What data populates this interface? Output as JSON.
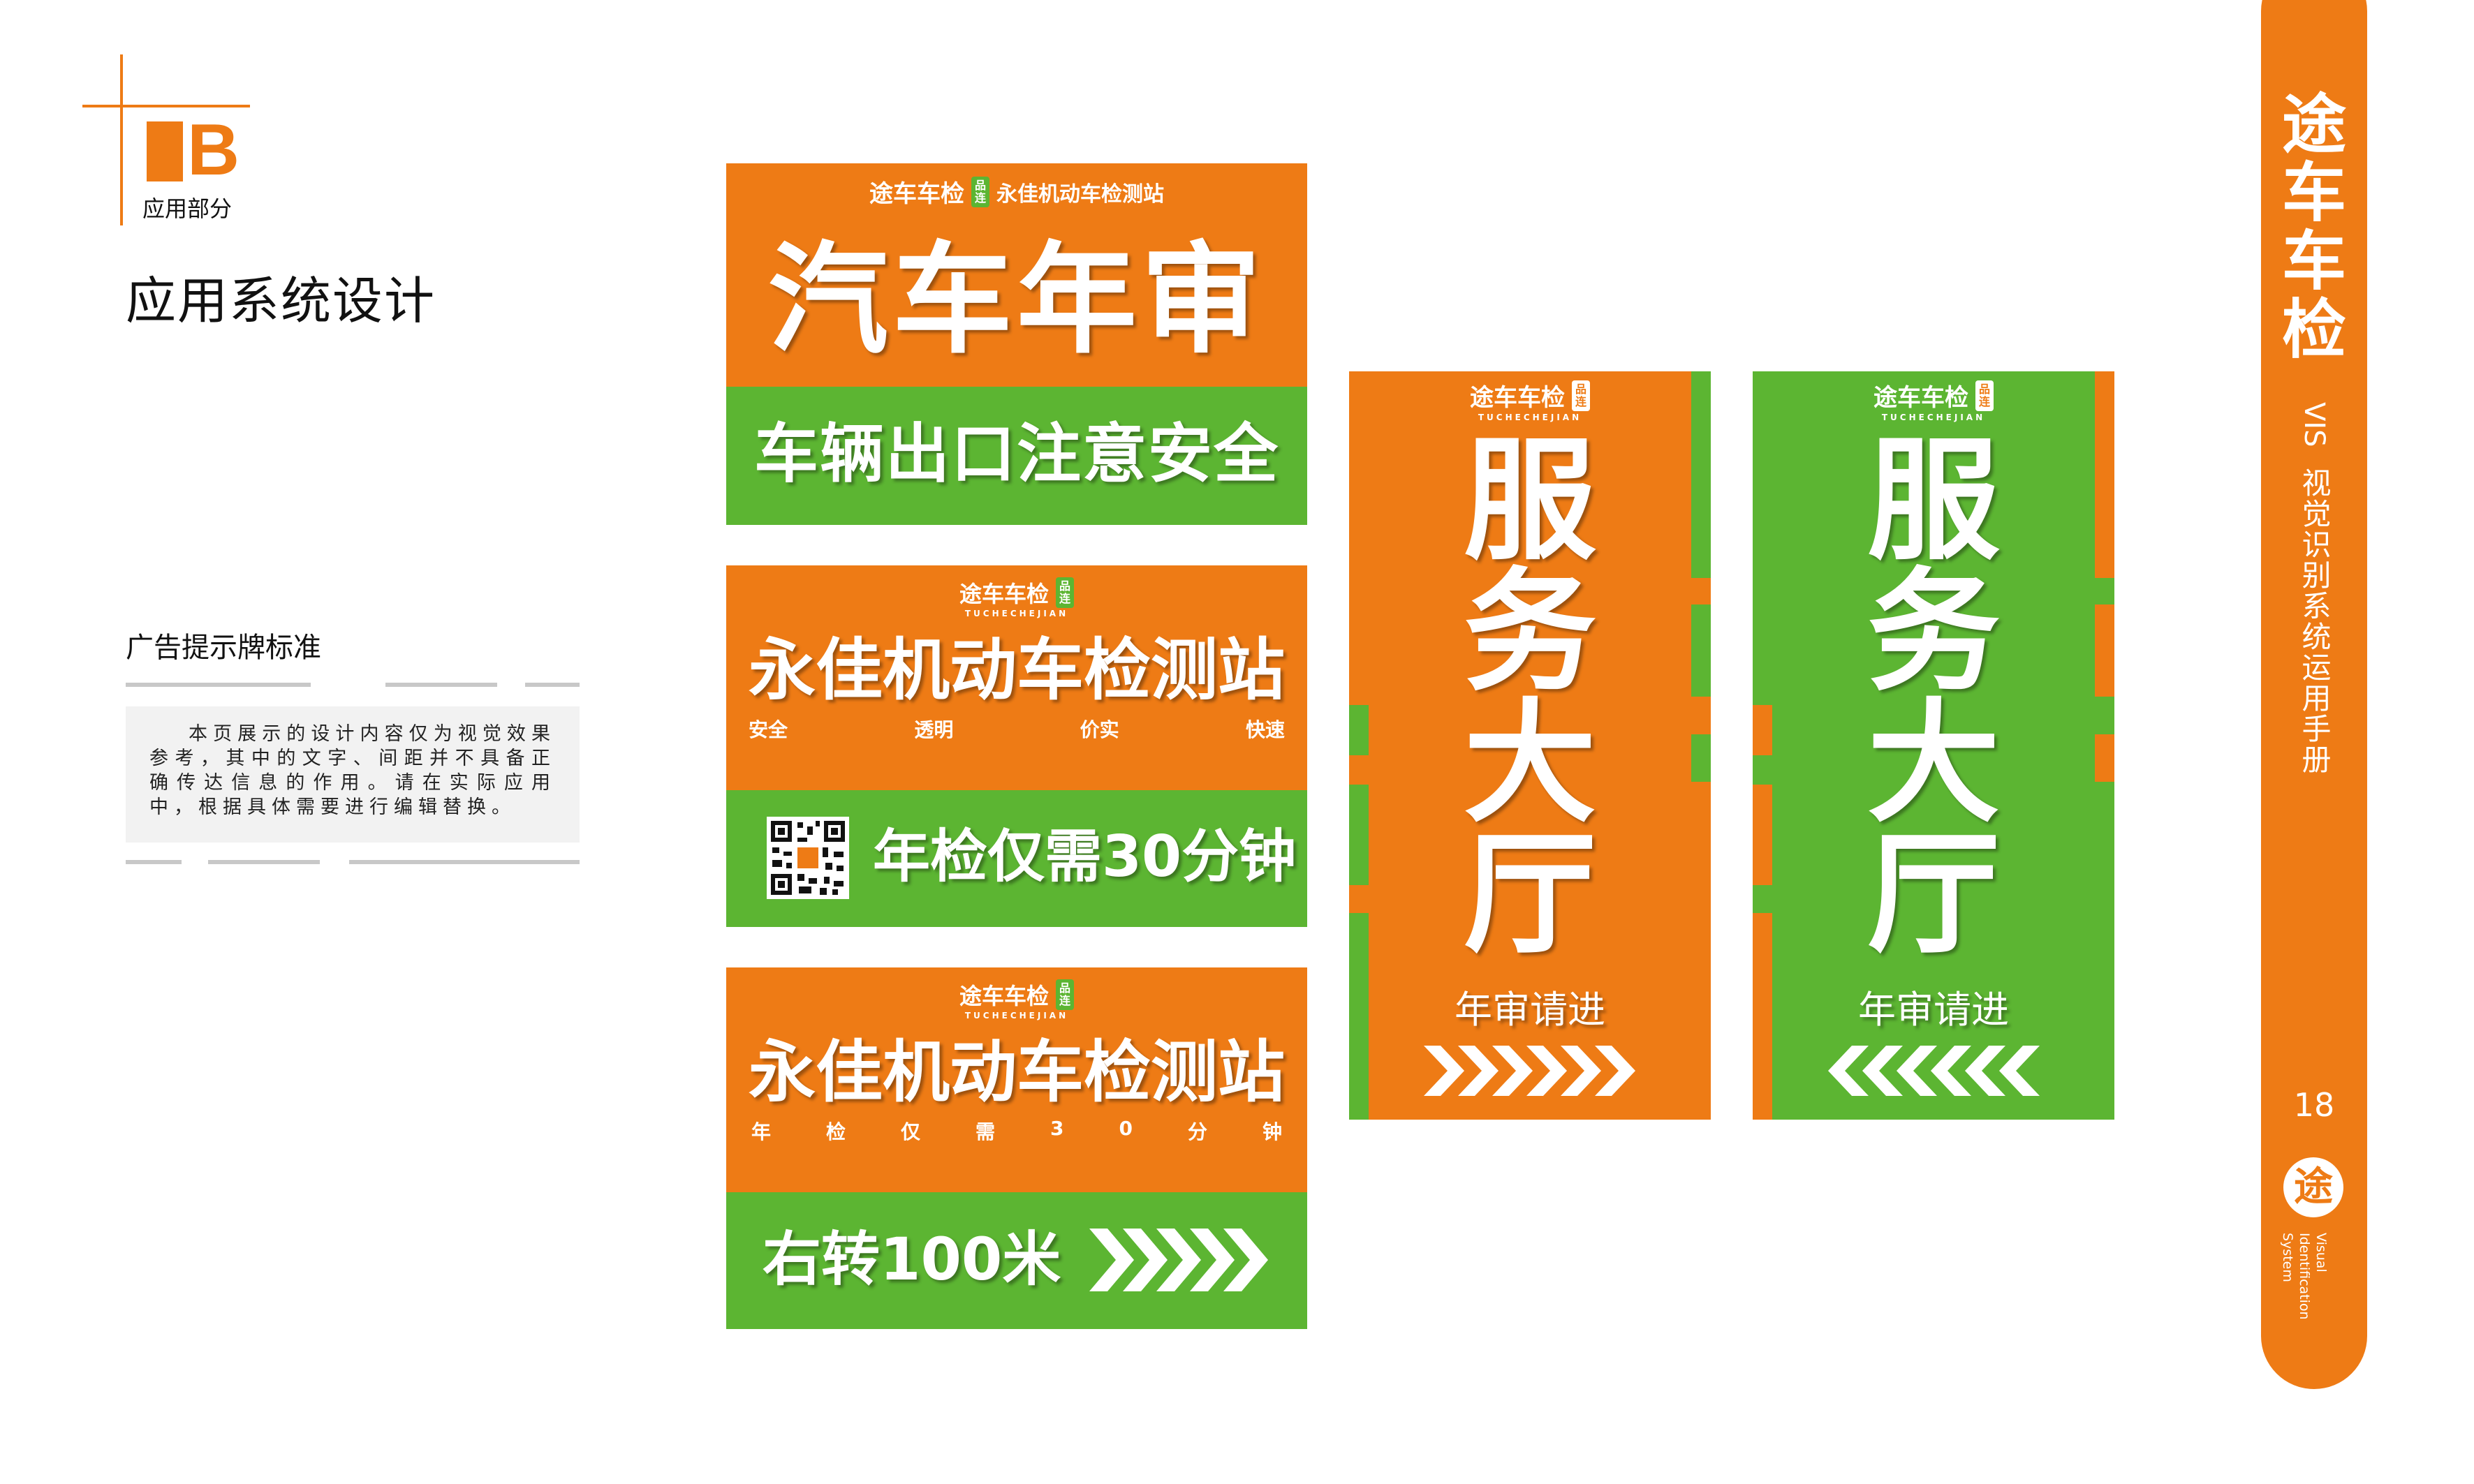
{
  "colors": {
    "orange": "#ee7b15",
    "green": "#5cb532",
    "white": "#ffffff",
    "text": "#111111"
  },
  "header": {
    "section_letter": "B",
    "section_label": "应用部分",
    "page_title": "应用系统设计"
  },
  "left": {
    "subtitle": "广告提示牌标准",
    "note": "本页展示的设计内容仅为视觉效果参考，其中的文字、间距并不具备正确传达信息的作用。请在实际应用中，根据具体需要进行编辑替换。"
  },
  "brand": {
    "name": "途车车检",
    "name_en": "TUCHECHEJIAN",
    "badge": "品牌连锁"
  },
  "sign1": {
    "station": "永佳机动车检测站",
    "headline": "汽车年审",
    "bottom": "车辆出口注意安全"
  },
  "sign2": {
    "station": "永佳机动车检测站",
    "tags": [
      "安全",
      "透明",
      "价实",
      "快速"
    ],
    "bottom": "年检仅需30分钟",
    "qr_icon": "qr-code-icon"
  },
  "sign3": {
    "station": "永佳机动车检测站",
    "tags": [
      "年",
      "检",
      "仅",
      "需",
      "3",
      "0",
      "分",
      "钟"
    ],
    "bottom": "右转100米",
    "arrow_icon": "chevron-right-arrows-icon"
  },
  "sign4": {
    "chars": [
      "服",
      "务",
      "大",
      "厅"
    ],
    "sub": "年审请进",
    "arrow_icon": "chevron-right-arrows-icon"
  },
  "sign5": {
    "chars": [
      "服",
      "务",
      "大",
      "厅"
    ],
    "sub": "年审请进",
    "arrow_icon": "chevron-left-arrows-icon"
  },
  "sidebar": {
    "brand_chars": [
      "途",
      "车",
      "车",
      "检"
    ],
    "vis_label": "VIS",
    "manual_title": "视觉识别系统运用手册",
    "page_number": "18",
    "logo_char": "途",
    "english_lines": [
      "Visual",
      "Identification",
      "System"
    ]
  }
}
